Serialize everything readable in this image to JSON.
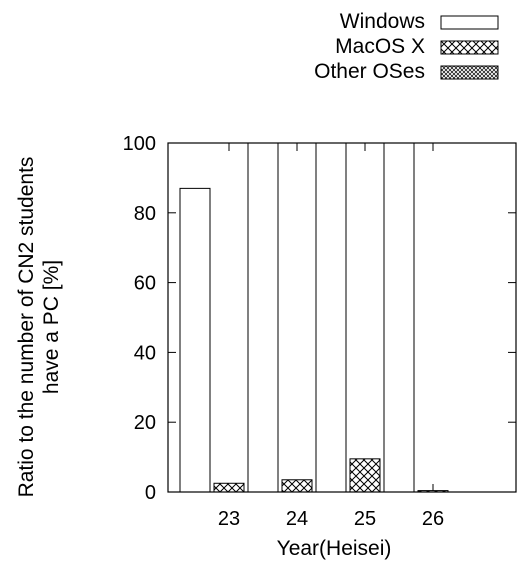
{
  "chart_data": {
    "type": "bar",
    "title": "",
    "xlabel": "Year(Heisei)",
    "ylabel_lines": [
      "Ratio to the number of CN2 students",
      "have a PC [%]"
    ],
    "categories": [
      "23",
      "24",
      "25",
      "26"
    ],
    "ylim": [
      0,
      100
    ],
    "yticks": [
      "0",
      "20",
      "40",
      "60",
      "80",
      "100"
    ],
    "grid": false,
    "legend_position": "top-right",
    "series": [
      {
        "name": "Windows",
        "pattern": "empty",
        "values": [
          87,
          100,
          100,
          100
        ]
      },
      {
        "name": "MacOS X",
        "pattern": "crosshatch",
        "values": [
          2.5,
          3.5,
          9.5,
          0.4
        ]
      },
      {
        "name": "Other OSes",
        "pattern": "dense-crosshatch",
        "values": [
          0,
          0,
          0,
          0
        ]
      }
    ]
  }
}
